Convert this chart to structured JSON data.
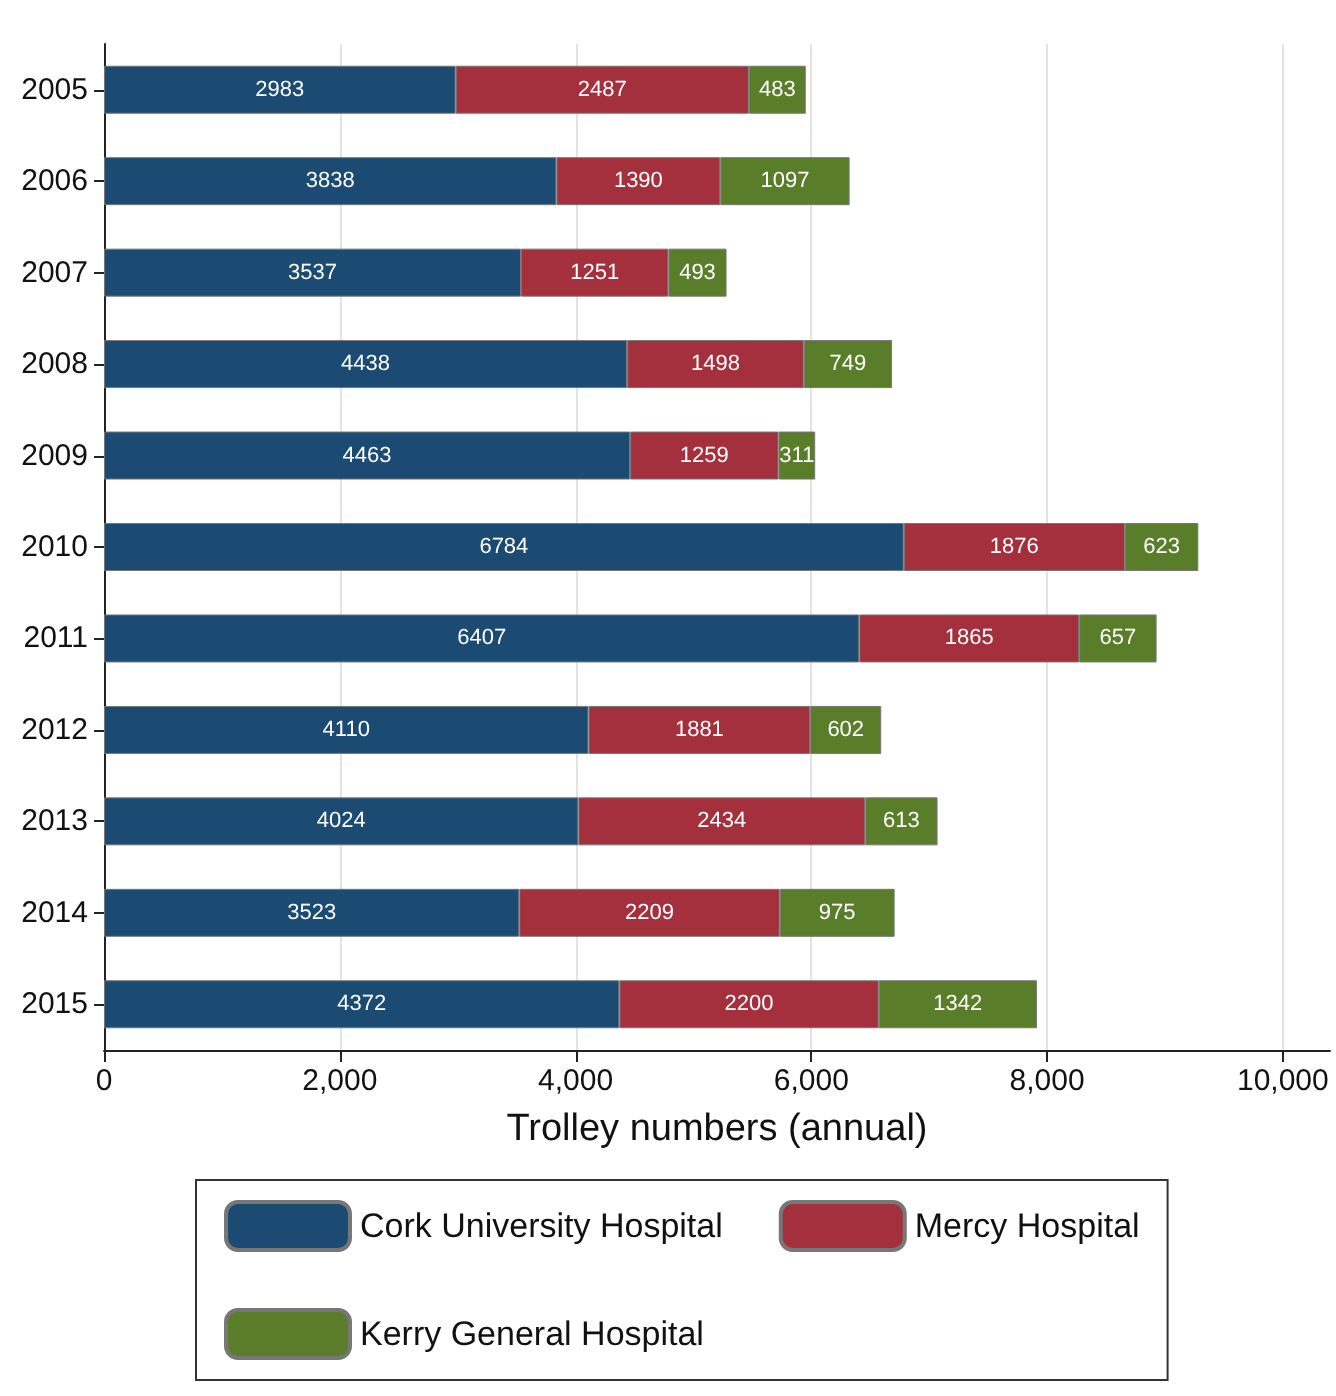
{
  "chart_data": {
    "type": "bar",
    "orientation": "horizontal",
    "stacked": true,
    "xlabel": "Trolley numbers (annual)",
    "categories": [
      "2005",
      "2006",
      "2007",
      "2008",
      "2009",
      "2010",
      "2011",
      "2012",
      "2013",
      "2014",
      "2015"
    ],
    "series": [
      {
        "name": "Cork University Hospital",
        "color": "#1b4a72",
        "values": [
          2983,
          3838,
          3537,
          4438,
          4463,
          6784,
          6407,
          4110,
          4024,
          3523,
          4372
        ]
      },
      {
        "name": "Mercy Hospital",
        "color": "#a3303c",
        "values": [
          2487,
          1390,
          1251,
          1498,
          1259,
          1876,
          1865,
          1881,
          2434,
          2209,
          2200
        ]
      },
      {
        "name": "Kerry General Hospital",
        "color": "#5a7d2a",
        "values": [
          483,
          1097,
          493,
          749,
          311,
          623,
          657,
          602,
          613,
          975,
          1342
        ]
      }
    ],
    "xlim": [
      0,
      10400
    ],
    "xticks": [
      0,
      {
        "value": 2000,
        "label": "2,000"
      },
      {
        "value": 4000,
        "label": "4,000"
      },
      {
        "value": 6000,
        "label": "6,000"
      },
      {
        "value": 8000,
        "label": "8,000"
      },
      {
        "value": 10000,
        "label": "10,000"
      }
    ],
    "grid": "x",
    "legend": "bottom",
    "data_labels": true
  }
}
